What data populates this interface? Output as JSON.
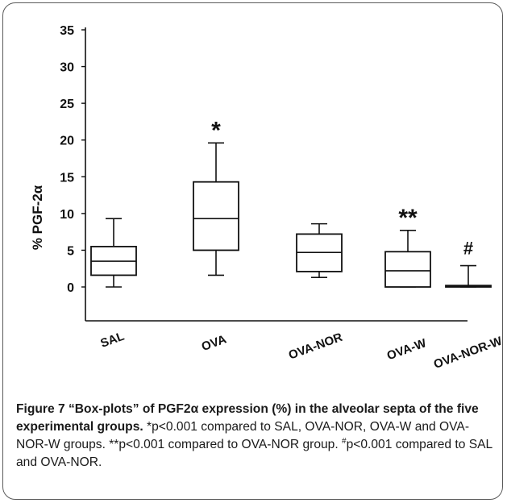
{
  "chart_data": {
    "type": "box",
    "ylabel": "% PGF-2α",
    "ylim": [
      0,
      35
    ],
    "yticks": [
      0,
      5,
      10,
      15,
      20,
      25,
      30,
      35
    ],
    "categories": [
      "SAL",
      "OVA",
      "OVA-NOR",
      "OVA-W",
      "OVA-NOR-W"
    ],
    "boxes": [
      {
        "min": 0.0,
        "q1": 1.6,
        "median": 3.5,
        "q3": 5.5,
        "max": 9.3,
        "annotation": ""
      },
      {
        "min": 1.6,
        "q1": 5.0,
        "median": 9.3,
        "q3": 14.3,
        "max": 19.6,
        "annotation": "*"
      },
      {
        "min": 1.3,
        "q1": 2.1,
        "median": 4.7,
        "q3": 7.2,
        "max": 8.6,
        "annotation": ""
      },
      {
        "min": 0.0,
        "q1": 0.0,
        "median": 2.2,
        "q3": 4.8,
        "max": 7.7,
        "annotation": "**"
      },
      {
        "min": 0.0,
        "q1": 0.0,
        "median": 0.1,
        "q3": 0.2,
        "max": 2.9,
        "annotation": "#"
      }
    ]
  },
  "caption": {
    "figure_label": "Figure 7",
    "title": "“Box-plots” of PGF2α expression (%) in the alveolar septa of the five experimental groups.",
    "note_1": " *p<0.001 compared to SAL, OVA-NOR, OVA-W and OVA-NOR-W groups. **p<0.001 compared to OVA-NOR group. ",
    "note_2_mark": "#",
    "note_2": "p<0.001 compared to SAL and OVA-NOR."
  }
}
